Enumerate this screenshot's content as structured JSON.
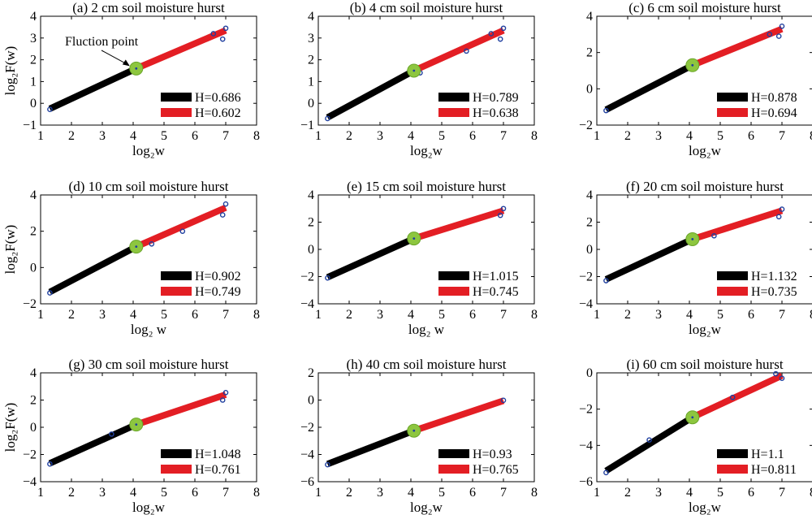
{
  "chart_data": [
    {
      "type": "line",
      "title": "(a) 2 cm soil moisture hurst",
      "xlabel": "log₂w",
      "ylabel": "log₂F(w)",
      "xlim": [
        1,
        8
      ],
      "ylim": [
        -1,
        4
      ],
      "xticks": [
        "1",
        "2",
        "3",
        "4",
        "5",
        "6",
        "7",
        "8"
      ],
      "yticks": [
        "−1",
        "0",
        "1",
        "2",
        "3",
        "4"
      ],
      "annotation": "Fluction point",
      "inflection": {
        "x": 4.1,
        "y": 1.6
      },
      "series": [
        {
          "name": "H=0.686",
          "color": "#000000",
          "x": [
            1.3,
            4.1
          ],
          "y": [
            -0.25,
            1.6
          ]
        },
        {
          "name": "H=0.602",
          "color": "#e31e24",
          "x": [
            4.1,
            7.0
          ],
          "y": [
            1.6,
            3.35
          ]
        }
      ],
      "points": {
        "x": [
          1.3,
          6.6,
          6.9,
          7.0
        ],
        "y": [
          -0.28,
          3.2,
          2.95,
          3.45
        ]
      }
    },
    {
      "type": "line",
      "title": "(b) 4 cm soil moisture hurst",
      "xlabel": "log₂w",
      "ylabel": "",
      "xlim": [
        1,
        8
      ],
      "ylim": [
        -1,
        4
      ],
      "xticks": [
        "1",
        "2",
        "3",
        "4",
        "5",
        "6",
        "7",
        "8"
      ],
      "yticks": [
        "−1",
        "0",
        "1",
        "2",
        "3",
        "4"
      ],
      "inflection": {
        "x": 4.1,
        "y": 1.5
      },
      "series": [
        {
          "name": "H=0.789",
          "color": "#000000",
          "x": [
            1.3,
            4.1
          ],
          "y": [
            -0.65,
            1.5
          ]
        },
        {
          "name": "H=0.638",
          "color": "#e31e24",
          "x": [
            4.1,
            7.0
          ],
          "y": [
            1.5,
            3.35
          ]
        }
      ],
      "points": {
        "x": [
          1.3,
          4.3,
          5.8,
          6.6,
          6.9,
          7.0
        ],
        "y": [
          -0.7,
          1.4,
          2.4,
          3.2,
          2.95,
          3.45
        ]
      }
    },
    {
      "type": "line",
      "title": "(c) 6 cm soil moisture hurst",
      "xlabel": "log₂w",
      "ylabel": "",
      "xlim": [
        1,
        8
      ],
      "ylim": [
        -2,
        4
      ],
      "xticks": [
        "1",
        "2",
        "3",
        "4",
        "5",
        "6",
        "7",
        "8"
      ],
      "yticks": [
        "−2",
        "0",
        "2",
        "4"
      ],
      "inflection": {
        "x": 4.1,
        "y": 1.3
      },
      "series": [
        {
          "name": "H=0.878",
          "color": "#000000",
          "x": [
            1.3,
            4.1
          ],
          "y": [
            -1.15,
            1.3
          ]
        },
        {
          "name": "H=0.694",
          "color": "#e31e24",
          "x": [
            4.1,
            7.0
          ],
          "y": [
            1.3,
            3.3
          ]
        }
      ],
      "points": {
        "x": [
          1.3,
          6.6,
          6.9,
          7.0
        ],
        "y": [
          -1.2,
          3.0,
          2.9,
          3.45
        ]
      }
    },
    {
      "type": "line",
      "title": "(d) 10 cm soil moisture hurst",
      "xlabel": "log₂ w",
      "ylabel": "log₂F(w)",
      "xlim": [
        1,
        8
      ],
      "ylim": [
        -2,
        4
      ],
      "xticks": [
        "1",
        "2",
        "3",
        "4",
        "5",
        "6",
        "7",
        "8"
      ],
      "yticks": [
        "−2",
        "0",
        "2",
        "4"
      ],
      "inflection": {
        "x": 4.1,
        "y": 1.15
      },
      "series": [
        {
          "name": "H=0.902",
          "color": "#000000",
          "x": [
            1.3,
            4.1
          ],
          "y": [
            -1.35,
            1.15
          ]
        },
        {
          "name": "H=0.749",
          "color": "#e31e24",
          "x": [
            4.1,
            7.0
          ],
          "y": [
            1.15,
            3.3
          ]
        }
      ],
      "points": {
        "x": [
          1.3,
          4.6,
          5.6,
          6.9,
          7.0
        ],
        "y": [
          -1.4,
          1.3,
          2.0,
          2.9,
          3.5
        ]
      }
    },
    {
      "type": "line",
      "title": "(e) 15 cm soil moisture hurst",
      "xlabel": "log₂ w",
      "ylabel": "",
      "xlim": [
        1,
        8
      ],
      "ylim": [
        -4,
        4
      ],
      "xticks": [
        "1",
        "2",
        "3",
        "4",
        "5",
        "6",
        "7",
        "8"
      ],
      "yticks": [
        "−4",
        "−2",
        "0",
        "2",
        "4"
      ],
      "inflection": {
        "x": 4.1,
        "y": 0.8
      },
      "series": [
        {
          "name": "H=1.015",
          "color": "#000000",
          "x": [
            1.3,
            4.1
          ],
          "y": [
            -2.05,
            0.8
          ]
        },
        {
          "name": "H=0.745",
          "color": "#e31e24",
          "x": [
            4.1,
            7.0
          ],
          "y": [
            0.8,
            2.85
          ]
        }
      ],
      "points": {
        "x": [
          1.3,
          6.9,
          7.0
        ],
        "y": [
          -2.1,
          2.5,
          3.0
        ]
      }
    },
    {
      "type": "line",
      "title": "(f) 20 cm soil moisture hurst",
      "xlabel": "log₂w",
      "ylabel": "",
      "xlim": [
        1,
        8
      ],
      "ylim": [
        -4,
        4
      ],
      "xticks": [
        "1",
        "2",
        "3",
        "4",
        "5",
        "6",
        "7",
        "8"
      ],
      "yticks": [
        "−4",
        "−2",
        "0",
        "2",
        "4"
      ],
      "inflection": {
        "x": 4.1,
        "y": 0.75
      },
      "series": [
        {
          "name": "H=1.132",
          "color": "#000000",
          "x": [
            1.3,
            4.1
          ],
          "y": [
            -2.2,
            0.75
          ]
        },
        {
          "name": "H=0.735",
          "color": "#e31e24",
          "x": [
            4.1,
            7.0
          ],
          "y": [
            0.75,
            2.85
          ]
        }
      ],
      "points": {
        "x": [
          1.3,
          4.8,
          6.9,
          7.0
        ],
        "y": [
          -2.3,
          1.0,
          2.4,
          2.95
        ]
      }
    },
    {
      "type": "line",
      "title": "(g) 30 cm soil moisture hurst",
      "xlabel": "log₂w",
      "ylabel": "log₂F(w)",
      "xlim": [
        1,
        8
      ],
      "ylim": [
        -4,
        4
      ],
      "xticks": [
        "1",
        "2",
        "3",
        "4",
        "5",
        "6",
        "7",
        "8"
      ],
      "yticks": [
        "−4",
        "−2",
        "0",
        "2",
        "4"
      ],
      "inflection": {
        "x": 4.1,
        "y": 0.2
      },
      "series": [
        {
          "name": "H=1.048",
          "color": "#000000",
          "x": [
            1.3,
            4.1
          ],
          "y": [
            -2.65,
            0.2
          ]
        },
        {
          "name": "H=0.761",
          "color": "#e31e24",
          "x": [
            4.1,
            7.0
          ],
          "y": [
            0.2,
            2.4
          ]
        }
      ],
      "points": {
        "x": [
          1.3,
          3.3,
          6.9,
          7.0
        ],
        "y": [
          -2.7,
          -0.5,
          2.0,
          2.55
        ]
      }
    },
    {
      "type": "line",
      "title": "(h) 40 cm soil moisture hurst",
      "xlabel": "log₂w",
      "ylabel": "",
      "xlim": [
        1,
        8
      ],
      "ylim": [
        -6,
        2
      ],
      "xticks": [
        "1",
        "2",
        "3",
        "4",
        "5",
        "6",
        "7",
        "8"
      ],
      "yticks": [
        "−6",
        "−4",
        "−2",
        "0",
        "2"
      ],
      "inflection": {
        "x": 4.1,
        "y": -2.25
      },
      "series": [
        {
          "name": "H=0.93",
          "color": "#000000",
          "x": [
            1.3,
            4.1
          ],
          "y": [
            -4.7,
            -2.25
          ]
        },
        {
          "name": "H=0.765",
          "color": "#e31e24",
          "x": [
            4.1,
            7.0
          ],
          "y": [
            -2.25,
            -0.05
          ]
        }
      ],
      "points": {
        "x": [
          1.3,
          7.0
        ],
        "y": [
          -4.75,
          -0.02
        ]
      }
    },
    {
      "type": "line",
      "title": "(i) 60 cm soil moisture hurst",
      "xlabel": "log₂w",
      "ylabel": "",
      "xlim": [
        1,
        8
      ],
      "ylim": [
        -6,
        0
      ],
      "xticks": [
        "1",
        "2",
        "3",
        "4",
        "5",
        "6",
        "7",
        "8"
      ],
      "yticks": [
        "−6",
        "−4",
        "−2",
        "0"
      ],
      "inflection": {
        "x": 4.1,
        "y": -2.45
      },
      "series": [
        {
          "name": "H=1.1",
          "color": "#000000",
          "x": [
            1.3,
            4.1
          ],
          "y": [
            -5.4,
            -2.45
          ]
        },
        {
          "name": "H=0.811",
          "color": "#e31e24",
          "x": [
            4.1,
            7.0
          ],
          "y": [
            -2.45,
            -0.15
          ]
        }
      ],
      "points": {
        "x": [
          1.3,
          2.7,
          5.4,
          6.8,
          7.0
        ],
        "y": [
          -5.5,
          -3.7,
          -1.35,
          -0.05,
          -0.3
        ]
      }
    }
  ]
}
